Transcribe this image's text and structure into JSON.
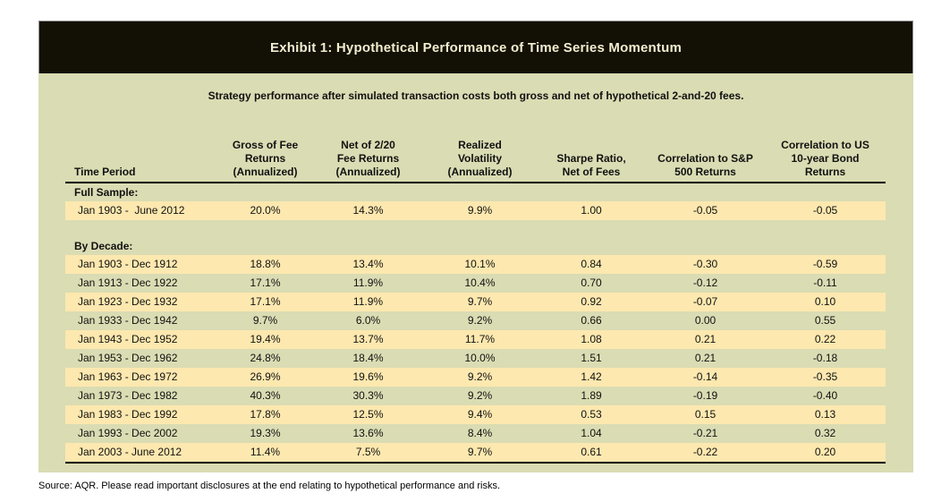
{
  "exhibit": {
    "title": "Exhibit 1: Hypothetical Performance of Time Series Momentum",
    "subtitle": "Strategy performance after simulated transaction costs both gross and net of hypothetical 2-and-20 fees.",
    "source_note": "Source: AQR. Please read important disclosures at the end relating to hypothetical performance and risks."
  },
  "colors": {
    "title_bar_bg": "#131006",
    "title_text": "#F1EDCE",
    "panel_bg": "#DADCB3",
    "row_highlight": "#FDE8AF",
    "rule": "#000000"
  },
  "chart_data": {
    "type": "table",
    "title": "Exhibit 1: Hypothetical Performance of Time Series Momentum",
    "columns": [
      "Time Period",
      "Gross of Fee\nReturns\n(Annualized)",
      "Net of 2/20\nFee Returns\n(Annualized)",
      "Realized\nVolatility\n(Annualized)",
      "Sharpe Ratio,\nNet of Fees",
      "Correlation to S&P\n500 Returns",
      "Correlation to US\n10-year Bond\nReturns"
    ],
    "sections": [
      {
        "label": "Full Sample:",
        "rows": [
          {
            "period": "Jan 1903 -  June 2012",
            "values": [
              "20.0%",
              "14.3%",
              "9.9%",
              "1.00",
              "-0.05",
              "-0.05"
            ]
          }
        ]
      },
      {
        "label": "By Decade:",
        "rows": [
          {
            "period": "Jan 1903 - Dec 1912",
            "values": [
              "18.8%",
              "13.4%",
              "10.1%",
              "0.84",
              "-0.30",
              "-0.59"
            ]
          },
          {
            "period": "Jan 1913 - Dec 1922",
            "values": [
              "17.1%",
              "11.9%",
              "10.4%",
              "0.70",
              "-0.12",
              "-0.11"
            ]
          },
          {
            "period": "Jan 1923 - Dec 1932",
            "values": [
              "17.1%",
              "11.9%",
              "9.7%",
              "0.92",
              "-0.07",
              "0.10"
            ]
          },
          {
            "period": "Jan 1933 - Dec 1942",
            "values": [
              "9.7%",
              "6.0%",
              "9.2%",
              "0.66",
              "0.00",
              "0.55"
            ]
          },
          {
            "period": "Jan 1943 - Dec 1952",
            "values": [
              "19.4%",
              "13.7%",
              "11.7%",
              "1.08",
              "0.21",
              "0.22"
            ]
          },
          {
            "period": "Jan 1953 - Dec 1962",
            "values": [
              "24.8%",
              "18.4%",
              "10.0%",
              "1.51",
              "0.21",
              "-0.18"
            ]
          },
          {
            "period": "Jan 1963 - Dec 1972",
            "values": [
              "26.9%",
              "19.6%",
              "9.2%",
              "1.42",
              "-0.14",
              "-0.35"
            ]
          },
          {
            "period": "Jan 1973 - Dec 1982",
            "values": [
              "40.3%",
              "30.3%",
              "9.2%",
              "1.89",
              "-0.19",
              "-0.40"
            ]
          },
          {
            "period": "Jan 1983 - Dec 1992",
            "values": [
              "17.8%",
              "12.5%",
              "9.4%",
              "0.53",
              "0.15",
              "0.13"
            ]
          },
          {
            "period": "Jan 1993 - Dec 2002",
            "values": [
              "19.3%",
              "13.6%",
              "8.4%",
              "1.04",
              "-0.21",
              "0.32"
            ]
          },
          {
            "period": "Jan 2003 - June 2012",
            "values": [
              "11.4%",
              "7.5%",
              "9.7%",
              "0.61",
              "-0.22",
              "0.20"
            ]
          }
        ]
      }
    ]
  }
}
